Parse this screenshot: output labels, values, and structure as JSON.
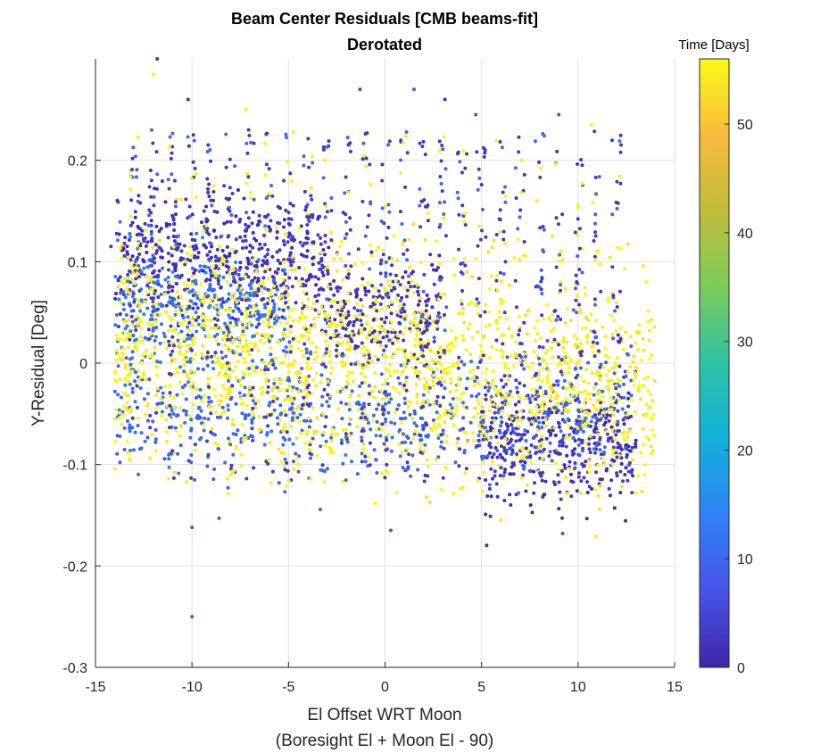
{
  "chart_data": {
    "type": "scatter",
    "title": "Beam Center Residuals [CMB beams-fit]",
    "subtitle": "Derotated",
    "xlabel": "El Offset WRT Moon",
    "xlabel2": "(Boresight El + Moon El - 90)",
    "ylabel": "Y-Residual [Deg]",
    "xlim": [
      -15,
      15
    ],
    "ylim": [
      -0.3,
      0.3
    ],
    "xticks": [
      -15,
      -10,
      -5,
      0,
      5,
      10,
      15
    ],
    "xtick_labels": [
      "-15",
      "-10",
      "-5",
      "0",
      "5",
      "10",
      "15"
    ],
    "yticks": [
      -0.3,
      -0.2,
      -0.1,
      0,
      0.1,
      0.2
    ],
    "ytick_labels": [
      "-0.3",
      "-0.2",
      "-0.1",
      "0",
      "0.1",
      "0.2"
    ],
    "grid": true,
    "colorbar": {
      "title": "Time [Days]",
      "range": [
        0,
        56
      ],
      "ticks": [
        0,
        10,
        20,
        30,
        40,
        50
      ],
      "tick_labels": [
        "0",
        "10",
        "20",
        "30",
        "40",
        "50"
      ],
      "colormap": "parula",
      "colors": [
        "#3e26a8",
        "#4653e8",
        "#2f82f5",
        "#12b1d9",
        "#2ec3a4",
        "#7bcb5b",
        "#c0bd3a",
        "#f9bb3e",
        "#f9fb14"
      ]
    },
    "series": [
      {
        "description_clusters": [
          {
            "time_days": 2,
            "x_range": [
              -14,
              -3
            ],
            "y_center": 0.1,
            "y_spread": 0.03
          },
          {
            "time_days": 2,
            "x_range": [
              -3,
              3
            ],
            "y_center": 0.05,
            "y_spread": 0.03
          },
          {
            "time_days": 2,
            "x_range": [
              5,
              13
            ],
            "y_center": -0.08,
            "y_spread": 0.03
          },
          {
            "time_days": 10,
            "x_range": [
              -14,
              13
            ],
            "y_center": -0.05,
            "y_spread": 0.03
          },
          {
            "time_days": 12,
            "x_range": [
              -14,
              -5
            ],
            "y_center": 0.05,
            "y_spread": 0.03
          },
          {
            "time_days": 55,
            "x_range": [
              -14,
              14
            ],
            "y_center": 0.0,
            "y_spread": 0.05
          }
        ],
        "sample_points": [
          {
            "x": -11.8,
            "y": 0.3,
            "t": 2
          },
          {
            "x": -12.0,
            "y": 0.285,
            "t": 55
          },
          {
            "x": -10.2,
            "y": 0.26,
            "t": 2
          },
          {
            "x": -7.2,
            "y": 0.25,
            "t": 55
          },
          {
            "x": -1.3,
            "y": 0.27,
            "t": 5
          },
          {
            "x": 1.5,
            "y": 0.27,
            "t": 8
          },
          {
            "x": 3.1,
            "y": 0.26,
            "t": 2
          },
          {
            "x": 4.7,
            "y": 0.245,
            "t": 8
          },
          {
            "x": 10.7,
            "y": 0.235,
            "t": 55
          },
          {
            "x": 9.0,
            "y": 0.245,
            "t": 8
          },
          {
            "x": -10.0,
            "y": -0.25,
            "t": 8
          },
          {
            "x": -10.0,
            "y": -0.162,
            "t": 8
          },
          {
            "x": -8.6,
            "y": -0.153,
            "t": 8
          },
          {
            "x": 0.3,
            "y": -0.165,
            "t": 8
          },
          {
            "x": 9.2,
            "y": -0.168,
            "t": 8
          },
          {
            "x": 13.8,
            "y": 0.008,
            "t": 55
          },
          {
            "x": -14.2,
            "y": 0.115,
            "t": 2
          },
          {
            "x": -14.0,
            "y": -0.055,
            "t": 55
          }
        ]
      }
    ]
  }
}
